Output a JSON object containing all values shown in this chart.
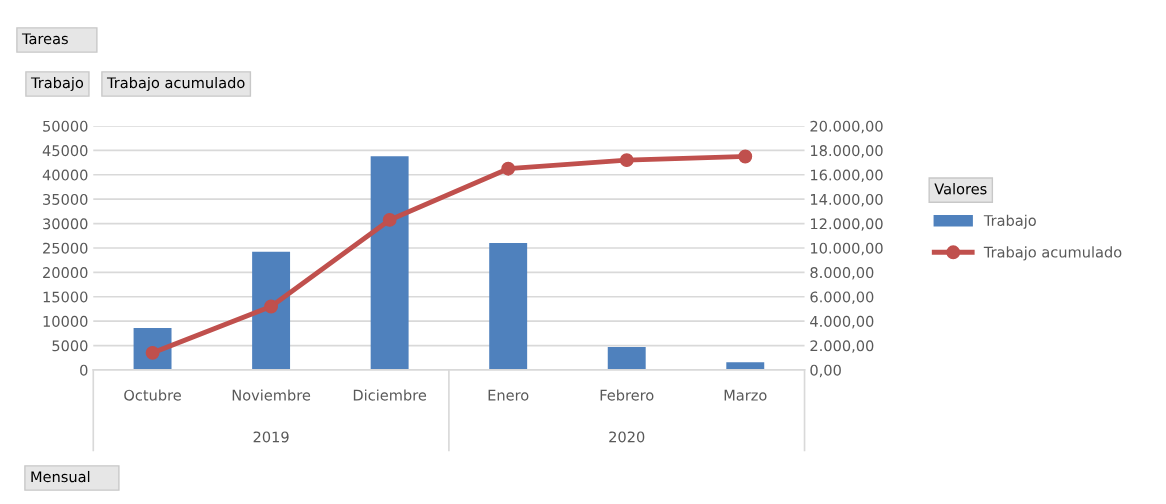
{
  "chart_data": {
    "type": "bar",
    "categories": [
      "Octubre",
      "Noviembre",
      "Diciembre",
      "Enero",
      "Febrero",
      "Marzo"
    ],
    "series": [
      {
        "name": "Trabajo",
        "color": "#4f81bd",
        "values": [
          8600,
          24200,
          43800,
          26000,
          4700,
          1600
        ]
      },
      {
        "name": "Trabajo acumulado",
        "type": "line",
        "axis": "y2",
        "color": "#c0504d",
        "values": [
          1400,
          5200,
          12300,
          16500,
          17200,
          17500
        ]
      }
    ],
    "ylim": [
      0,
      50000
    ],
    "yticks": [
      0,
      5000,
      10000,
      15000,
      20000,
      25000,
      30000,
      35000,
      40000,
      45000,
      50000
    ],
    "y2lim": [
      0,
      20000
    ],
    "y2ticks": [
      {
        "value": 0,
        "label": "0,00"
      },
      {
        "value": 2000,
        "label": "2.000,00"
      },
      {
        "value": 4000,
        "label": "4.000,00"
      },
      {
        "value": 6000,
        "label": "6.000,00"
      },
      {
        "value": 8000,
        "label": "8.000,00"
      },
      {
        "value": 10000,
        "label": "10.000,00"
      },
      {
        "value": 12000,
        "label": "12.000,00"
      },
      {
        "value": 14000,
        "label": "14.000,00"
      },
      {
        "value": 16000,
        "label": "16.000,00"
      },
      {
        "value": 18000,
        "label": "18.000,00"
      },
      {
        "value": 20000,
        "label": "20.000,00"
      }
    ],
    "annotations": [
      "Tareas",
      "Trabajo",
      "Trabajo acumulado",
      "Mensual",
      "2019",
      "2020"
    ],
    "legend": "right",
    "legend_title": "Valores",
    "grid": "y",
    "marker": "circle",
    "line_style": "solid"
  }
}
